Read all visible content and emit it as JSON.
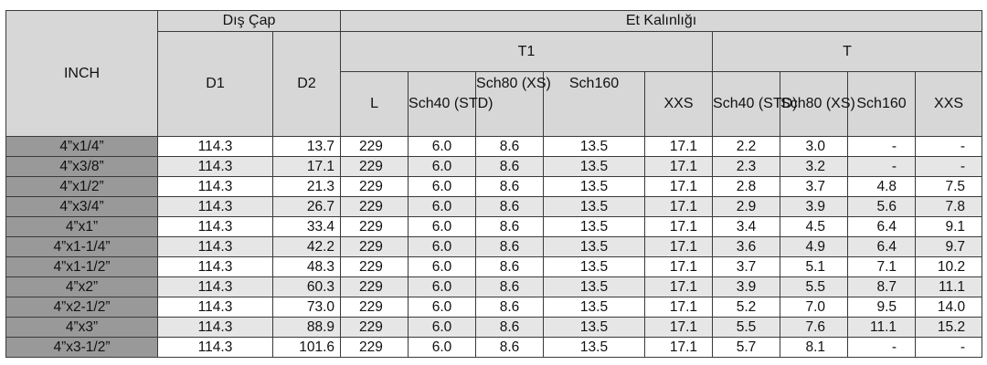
{
  "headers": {
    "inch": "INCH",
    "dis_cap": "Dış Çap",
    "et_kalinligi": "Et Kalınlığı",
    "d1": "D1",
    "d2": "D2",
    "t1": "T1",
    "t": "T",
    "l": "L",
    "t1_sch40": "Sch40 (STD)",
    "t1_sch80": "Sch80 (XS)",
    "t1_sch160": "Sch160",
    "t1_xxs": "XXS",
    "t_sch40": "Sch40 (STD)",
    "t_sch80": "Sch80 (XS)",
    "t_sch160": "Sch160",
    "t_xxs": "XXS"
  },
  "rows": [
    {
      "size": "4”x1/4”",
      "d1": "114.3",
      "d2": "13.7",
      "l": "229",
      "t1_sch40": "6.0",
      "t1_sch80": "8.6",
      "t1_sch160": "13.5",
      "t1_xxs": "17.1",
      "t_sch40": "2.2",
      "t_sch80": "3.0",
      "t_sch160": "-",
      "t_xxs": "-"
    },
    {
      "size": "4”x3/8”",
      "d1": "114.3",
      "d2": "17.1",
      "l": "229",
      "t1_sch40": "6.0",
      "t1_sch80": "8.6",
      "t1_sch160": "13.5",
      "t1_xxs": "17.1",
      "t_sch40": "2.3",
      "t_sch80": "3.2",
      "t_sch160": "-",
      "t_xxs": "-"
    },
    {
      "size": "4”x1/2”",
      "d1": "114.3",
      "d2": "21.3",
      "l": "229",
      "t1_sch40": "6.0",
      "t1_sch80": "8.6",
      "t1_sch160": "13.5",
      "t1_xxs": "17.1",
      "t_sch40": "2.8",
      "t_sch80": "3.7",
      "t_sch160": "4.8",
      "t_xxs": "7.5"
    },
    {
      "size": "4”x3/4”",
      "d1": "114.3",
      "d2": "26.7",
      "l": "229",
      "t1_sch40": "6.0",
      "t1_sch80": "8.6",
      "t1_sch160": "13.5",
      "t1_xxs": "17.1",
      "t_sch40": "2.9",
      "t_sch80": "3.9",
      "t_sch160": "5.6",
      "t_xxs": "7.8"
    },
    {
      "size": "4”x1”",
      "d1": "114.3",
      "d2": "33.4",
      "l": "229",
      "t1_sch40": "6.0",
      "t1_sch80": "8.6",
      "t1_sch160": "13.5",
      "t1_xxs": "17.1",
      "t_sch40": "3.4",
      "t_sch80": "4.5",
      "t_sch160": "6.4",
      "t_xxs": "9.1"
    },
    {
      "size": "4”x1-1/4”",
      "d1": "114.3",
      "d2": "42.2",
      "l": "229",
      "t1_sch40": "6.0",
      "t1_sch80": "8.6",
      "t1_sch160": "13.5",
      "t1_xxs": "17.1",
      "t_sch40": "3.6",
      "t_sch80": "4.9",
      "t_sch160": "6.4",
      "t_xxs": "9.7"
    },
    {
      "size": "4”x1-1/2”",
      "d1": "114.3",
      "d2": "48.3",
      "l": "229",
      "t1_sch40": "6.0",
      "t1_sch80": "8.6",
      "t1_sch160": "13.5",
      "t1_xxs": "17.1",
      "t_sch40": "3.7",
      "t_sch80": "5.1",
      "t_sch160": "7.1",
      "t_xxs": "10.2"
    },
    {
      "size": "4”x2”",
      "d1": "114.3",
      "d2": "60.3",
      "l": "229",
      "t1_sch40": "6.0",
      "t1_sch80": "8.6",
      "t1_sch160": "13.5",
      "t1_xxs": "17.1",
      "t_sch40": "3.9",
      "t_sch80": "5.5",
      "t_sch160": "8.7",
      "t_xxs": "11.1"
    },
    {
      "size": "4”x2-1/2”",
      "d1": "114.3",
      "d2": "73.0",
      "l": "229",
      "t1_sch40": "6.0",
      "t1_sch80": "8.6",
      "t1_sch160": "13.5",
      "t1_xxs": "17.1",
      "t_sch40": "5.2",
      "t_sch80": "7.0",
      "t_sch160": "9.5",
      "t_xxs": "14.0"
    },
    {
      "size": "4”x3”",
      "d1": "114.3",
      "d2": "88.9",
      "l": "229",
      "t1_sch40": "6.0",
      "t1_sch80": "8.6",
      "t1_sch160": "13.5",
      "t1_xxs": "17.1",
      "t_sch40": "5.5",
      "t_sch80": "7.6",
      "t_sch160": "11.1",
      "t_xxs": "15.2"
    },
    {
      "size": "4”x3-1/2”",
      "d1": "114.3",
      "d2": "101.6",
      "l": "229",
      "t1_sch40": "6.0",
      "t1_sch80": "8.6",
      "t1_sch160": "13.5",
      "t1_xxs": "17.1",
      "t_sch40": "5.7",
      "t_sch80": "8.1",
      "t_sch160": "-",
      "t_xxs": "-"
    }
  ]
}
